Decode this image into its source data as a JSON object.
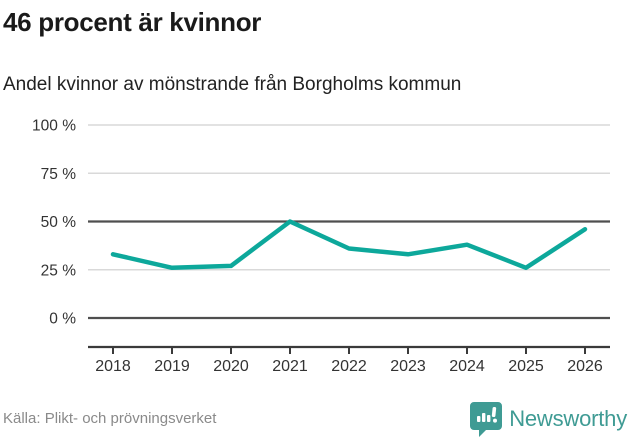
{
  "header": {
    "title": "46 procent är kvinnor",
    "subtitle": "Andel kvinnor av mönstrande från Borgholms kommun"
  },
  "chart_data": {
    "type": "line",
    "title": "Andel kvinnor av mönstrande från Borgholms kommun",
    "categories": [
      "2018",
      "2019",
      "2020",
      "2021",
      "2022",
      "2023",
      "2024",
      "2025",
      "2026"
    ],
    "values": [
      33,
      26,
      27,
      50,
      36,
      33,
      38,
      26,
      46
    ],
    "unit": "%",
    "xlabel": "",
    "ylabel": "",
    "ylim": [
      0,
      100
    ],
    "yticks": [
      0,
      25,
      50,
      75,
      100
    ],
    "ytick_labels": [
      "0 %",
      "25 %",
      "50 %",
      "75 %",
      "100 %"
    ],
    "emphasized_gridlines": [
      0,
      50
    ],
    "grid": true,
    "legend": "none",
    "line_color": "#0da89b"
  },
  "footer": {
    "source": "Källa: Plikt- och prövningsverket",
    "brand": "Newsworthy"
  },
  "colors": {
    "line": "#0da89b",
    "grid_light": "#d9d9d9",
    "grid_dark": "#4f4f4f",
    "axis": "#3a3a3a",
    "tick_text": "#333333",
    "brand_teal": "#3f9b94",
    "source_gray": "#8a8a8a"
  }
}
